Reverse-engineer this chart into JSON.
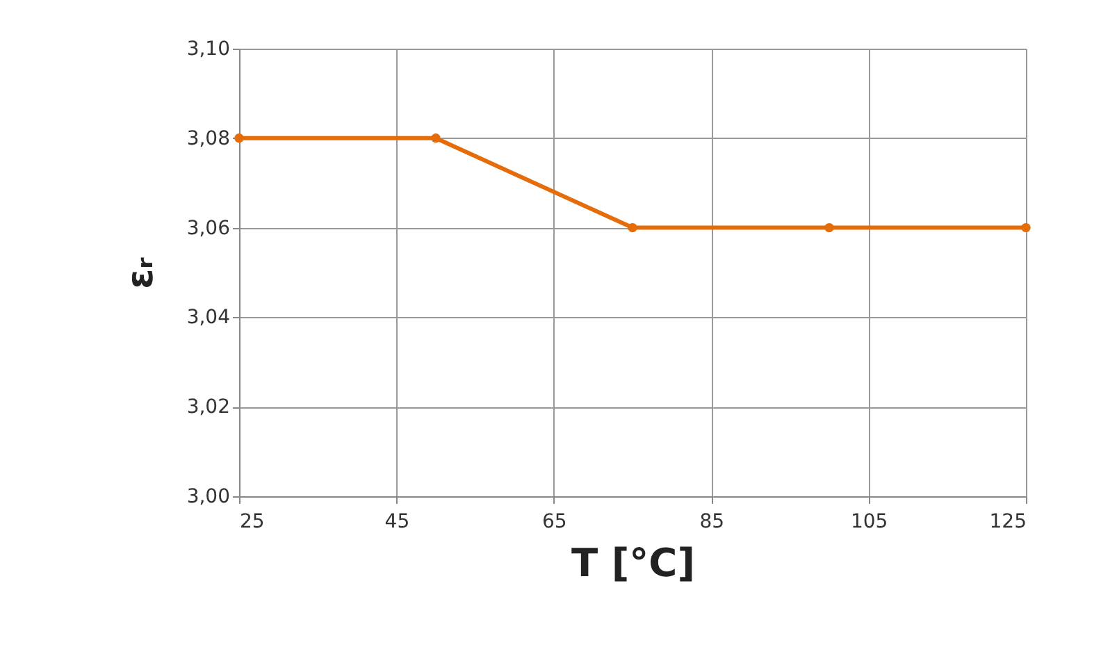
{
  "chart_data": {
    "type": "line",
    "xlabel": "T [°C]",
    "ylabel": "εᵣ",
    "x": [
      25,
      50,
      75,
      100,
      125
    ],
    "series": [
      {
        "color": "#e46c0a",
        "values": [
          3.08,
          3.08,
          3.06,
          3.06,
          3.06
        ]
      }
    ],
    "xlim": [
      25,
      125
    ],
    "xticks": [
      25,
      45,
      65,
      85,
      105,
      125
    ],
    "ylim": [
      3.0,
      3.1
    ],
    "yticks": [
      {
        "value": 3.0,
        "label": "3,00"
      },
      {
        "value": 3.02,
        "label": "3,02"
      },
      {
        "value": 3.04,
        "label": "3,04"
      },
      {
        "value": 3.06,
        "label": "3,06"
      },
      {
        "value": 3.08,
        "label": "3,08"
      },
      {
        "value": 3.1,
        "label": "3,10"
      }
    ],
    "grid": true,
    "marker": "circle",
    "line_style": "solid"
  }
}
